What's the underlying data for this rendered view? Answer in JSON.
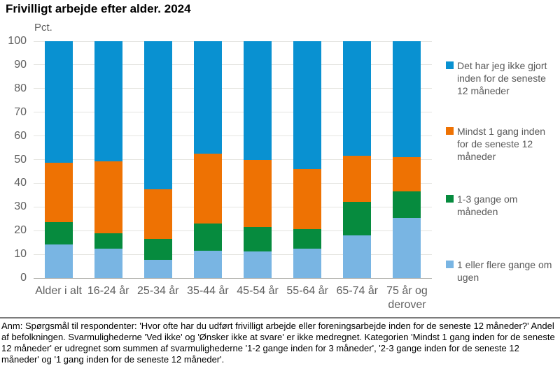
{
  "header": {
    "title": "Frivilligt arbejde efter alder. 2024"
  },
  "chart_data": {
    "type": "bar",
    "stacked": true,
    "title": "Frivilligt arbejde efter alder. 2024",
    "unit_label": "Pct.",
    "xlabel": "",
    "ylabel": "Pct.",
    "ylim": [
      0,
      100
    ],
    "yticks": [
      0,
      10,
      20,
      30,
      40,
      50,
      60,
      70,
      80,
      90,
      100
    ],
    "grid": "horizontal",
    "legend_position": "right",
    "categories": [
      "Alder i alt",
      "16-24 år",
      "25-34 år",
      "35-44 år",
      "45-54 år",
      "55-64 år",
      "65-74 år",
      "75 år og derover"
    ],
    "series": [
      {
        "name": "1 eller flere gange om ugen",
        "color": "#79b5e3",
        "values": [
          14.2,
          12.5,
          7.8,
          11.4,
          11.2,
          12.4,
          18.0,
          25.4
        ]
      },
      {
        "name": "1-3 gange om måneden",
        "color": "#068b3e",
        "values": [
          9.4,
          6.4,
          8.6,
          11.6,
          10.4,
          8.4,
          14.1,
          11.2
        ]
      },
      {
        "name": "Mindst 1 gang inden for de seneste 12 måneder",
        "color": "#ee7203",
        "values": [
          25.1,
          30.3,
          21.2,
          29.6,
          28.4,
          25.2,
          19.6,
          14.5
        ]
      },
      {
        "name": "Det har jeg ikke gjort inden for de seneste 12 måneder",
        "color": "#0991d1",
        "values": [
          51.3,
          50.8,
          62.4,
          47.4,
          50.0,
          54.0,
          48.3,
          48.9
        ]
      }
    ],
    "legend_entries": [
      "Det har jeg ikke gjort inden for de seneste 12 måneder",
      "Mindst 1 gang inden for de seneste 12 måneder",
      "1-3 gange om måneden",
      "1 eller flere gange om ugen"
    ]
  },
  "footnote": {
    "text": "Anm: Spørgsmål til respondenter: 'Hvor ofte har du udført frivilligt arbejde eller foreningsarbejde inden for de seneste 12 måneder?' Andel af befolkningen. Svarmulighederne 'Ved ikke' og 'Ønsker ikke at svare' er ikke medregnet. Kategorien 'Mindst 1 gang inden for de seneste 12 måneder' er udregnet som summen af svarmulighederne '1-2 gange inden for 3 måneder', '2-3 gange inden for de seneste 12 måneder' og '1 gang inden for de seneste 12 måneder'."
  }
}
